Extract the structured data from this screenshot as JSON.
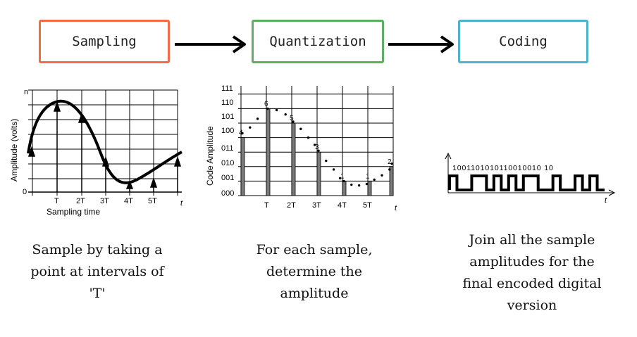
{
  "steps": [
    {
      "label": "Sampling",
      "color": "#ef6c45"
    },
    {
      "label": "Quantization",
      "color": "#5cae63"
    },
    {
      "label": "Coding",
      "color": "#4bb3cc"
    }
  ],
  "captions": {
    "sampling": [
      "Sample by taking a",
      "point at intervals of",
      "'T'"
    ],
    "quantization": [
      "For each sample,",
      "determine the",
      "amplitude"
    ],
    "coding": [
      "Join all the sample",
      "amplitudes for the",
      "final encoded digital",
      "version"
    ]
  },
  "sampling_chart": {
    "ylabel": "Amplitude (volts)",
    "xlabel": "Sampling time",
    "y_top_label": "n",
    "y_zero_label": "0",
    "x_ticks": [
      "T",
      "2T",
      "3T",
      "4T",
      "5T"
    ],
    "x_end_label": "t"
  },
  "quantization_chart": {
    "ylabel": "Code Amplitude",
    "y_ticks": [
      "000",
      "001",
      "010",
      "011",
      "100",
      "101",
      "110",
      "111"
    ],
    "x_ticks": [
      "T",
      "2T",
      "3T",
      "4T",
      "5T"
    ],
    "x_end_label": "t",
    "samples": [
      {
        "t": 0,
        "code": 4
      },
      {
        "t": 1,
        "code": 6
      },
      {
        "t": 2,
        "code": 5
      },
      {
        "t": 3,
        "code": 3
      },
      {
        "t": 4,
        "code": 1
      },
      {
        "t": 5,
        "code": 1
      },
      {
        "t": 6,
        "code": 2
      }
    ]
  },
  "coding_chart": {
    "bits": "1001101010110010010 10",
    "x_end_label": "t"
  }
}
